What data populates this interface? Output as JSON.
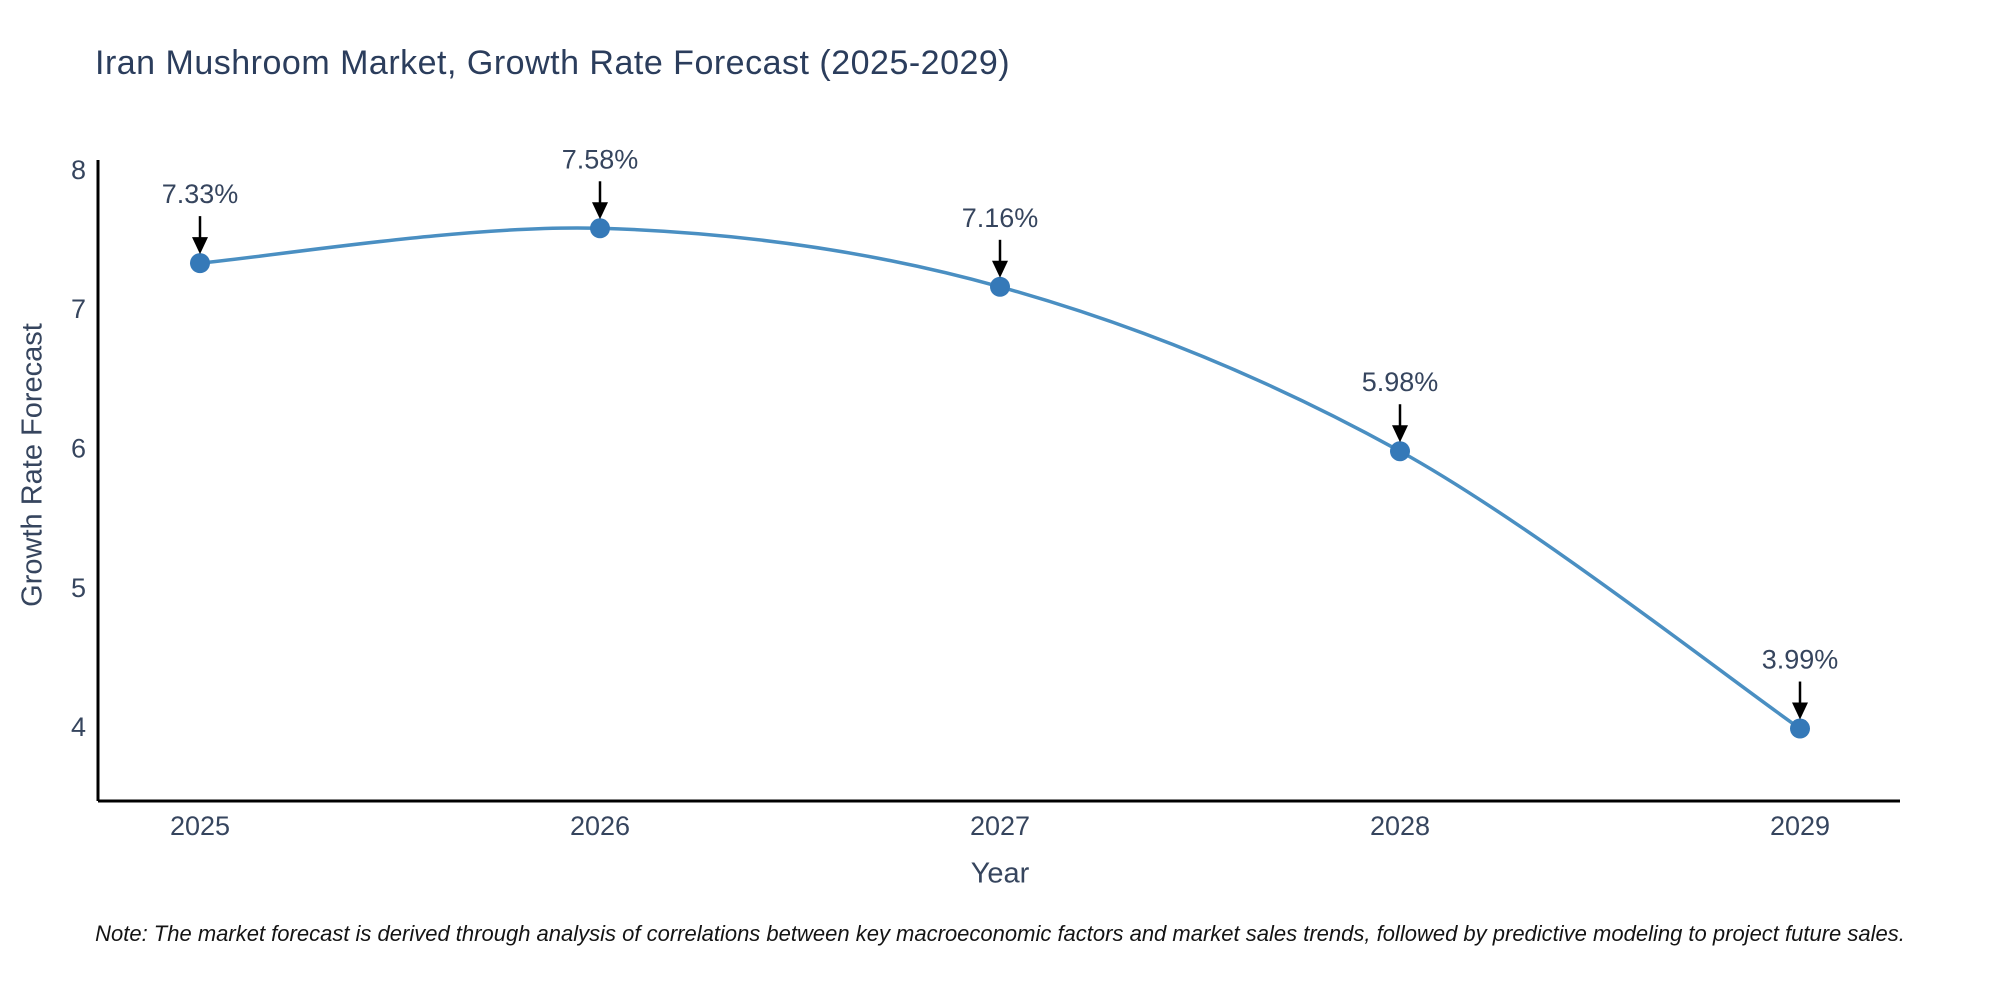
{
  "title": "Iran Mushroom Market, Growth Rate Forecast (2025-2029)",
  "note": "Note: The market forecast is derived through analysis of correlations between key macroeconomic factors and market sales trends, followed by predictive modeling to project future sales.",
  "chart_data": {
    "type": "line",
    "title": "Iran Mushroom Market, Growth Rate Forecast (2025-2029)",
    "xlabel": "Year",
    "ylabel": "Growth Rate Forecast",
    "categories": [
      "2025",
      "2026",
      "2027",
      "2028",
      "2029"
    ],
    "series": [
      {
        "name": "Growth Rate Forecast",
        "values": [
          7.33,
          7.58,
          7.16,
          5.98,
          3.99
        ],
        "point_labels": [
          "7.33%",
          "7.58%",
          "7.16%",
          "5.98%",
          "3.99%"
        ]
      }
    ],
    "yticks": [
      4,
      5,
      6,
      7,
      8
    ],
    "ylim": [
      3.47,
      8.07
    ],
    "grid": false,
    "legend_position": "none",
    "annotations": "value labels with down arrows above each point",
    "colors": {
      "line": "#4a8fc2",
      "marker": "#3579b8",
      "arrow": "#000000",
      "axis": "#000000",
      "tick_text": "#36455e",
      "title_text": "#2b3d5c",
      "note_text": "#141414"
    }
  }
}
